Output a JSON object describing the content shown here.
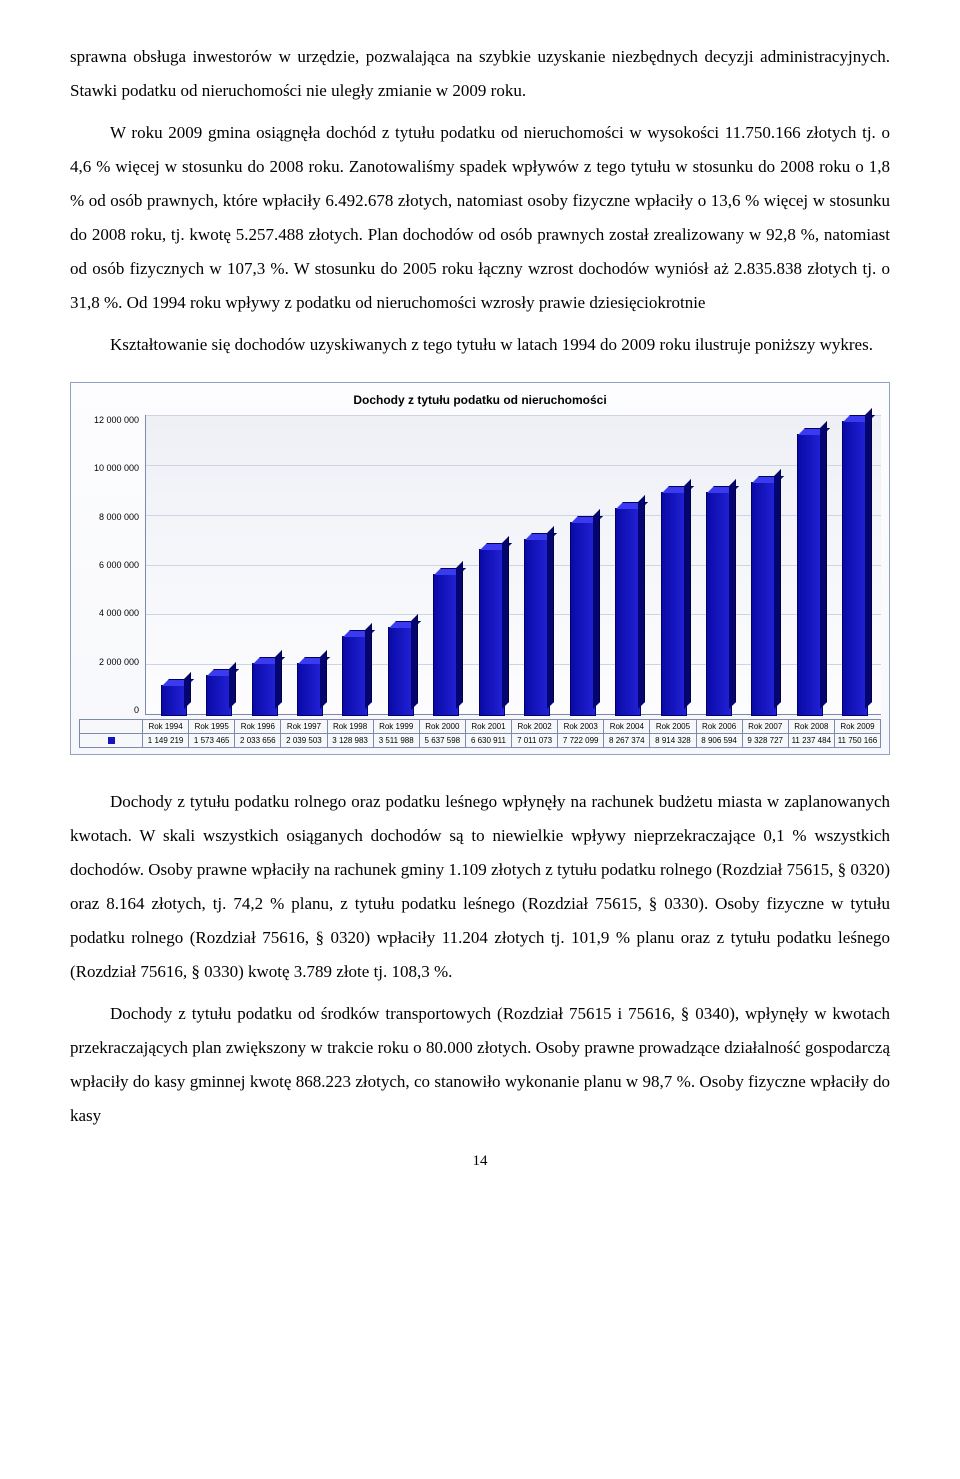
{
  "paragraphs": {
    "p1": "sprawna obsługa inwestorów w urzędzie, pozwalająca na szybkie uzyskanie niezbędnych decyzji administracyjnych. Stawki podatku od nieruchomości nie uległy zmianie w 2009 roku.",
    "p2": "W roku 2009 gmina osiągnęła dochód z tytułu podatku od nieruchomości w wysokości 11.750.166 złotych tj. o 4,6 % więcej w stosunku do 2008 roku. Zanotowaliśmy spadek wpływów z tego tytułu w stosunku do 2008 roku o 1,8 % od osób prawnych, które wpłaciły 6.492.678 złotych, natomiast osoby fizyczne wpłaciły o 13,6 % więcej w stosunku do 2008 roku, tj. kwotę 5.257.488 złotych. Plan dochodów od osób prawnych został zrealizowany w 92,8 %, natomiast od osób fizycznych w 107,3 %. W stosunku do 2005 roku łączny wzrost dochodów wyniósł aż 2.835.838 złotych tj. o 31,8 %. Od 1994 roku wpływy z podatku od nieruchomości wzrosły prawie dziesięciokrotnie",
    "p3": "Kształtowanie się dochodów uzyskiwanych z tego tytułu w latach 1994 do 2009 roku ilustruje poniższy wykres.",
    "p4": "Dochody z tytułu podatku rolnego oraz podatku leśnego wpłynęły na rachunek budżetu miasta w zaplanowanych kwotach. W skali wszystkich osiąganych dochodów są to niewielkie wpływy nieprzekraczające 0,1 % wszystkich dochodów. Osoby prawne wpłaciły na rachunek gminy 1.109 złotych z tytułu podatku rolnego (Rozdział 75615, § 0320) oraz 8.164 złotych, tj. 74,2 % planu, z tytułu podatku leśnego (Rozdział 75615, § 0330). Osoby fizyczne w tytułu podatku rolnego (Rozdział 75616, § 0320) wpłaciły 11.204 złotych tj. 101,9 % planu oraz z tytułu podatku leśnego (Rozdział 75616, § 0330) kwotę 3.789 złote tj. 108,3 %.",
    "p5": "Dochody z tytułu podatku od środków transportowych (Rozdział 75615 i 75616, § 0340), wpłynęły w kwotach przekraczających plan zwiększony w trakcie roku o 80.000 złotych. Osoby prawne prowadzące działalność gospodarczą wpłaciły do kasy gminnej kwotę 868.223 złotych, co stanowiło wykonanie planu w 98,7 %. Osoby fizyczne wpłaciły do kasy"
  },
  "chart": {
    "title": "Dochody z tytułu podatku od nieruchomości",
    "ymax": 12000000,
    "ystep": 2000000,
    "yticks": [
      "12 000 000",
      "10 000 000",
      "8 000 000",
      "6 000 000",
      "4 000 000",
      "2 000 000",
      "0"
    ],
    "categories": [
      "Rok 1994",
      "Rok 1995",
      "Rok 1996",
      "Rok 1997",
      "Rok 1998",
      "Rok 1999",
      "Rok 2000",
      "Rok 2001",
      "Rok 2002",
      "Rok 2003",
      "Rok 2004",
      "Rok 2005",
      "Rok 2006",
      "Rok 2007",
      "Rok 2008",
      "Rok 2009"
    ],
    "values": [
      1149219,
      1573465,
      2033656,
      2039503,
      3128983,
      3511988,
      5637598,
      6630911,
      7011073,
      7722099,
      8267374,
      8914328,
      8906594,
      9328727,
      11237484,
      11750166
    ],
    "value_labels": [
      "1 149 219",
      "1 573 465",
      "2 033 656",
      "2 039 503",
      "3 128 983",
      "3 511 988",
      "5 637 598",
      "6 630 911",
      "7 011 073",
      "7 722 099",
      "8 267 374",
      "8 914 328",
      "8 906 594",
      "9 328 727",
      "11 237 484",
      "11 750 166"
    ],
    "bar_color_front": "#1515c0",
    "bar_color_side": "#050570",
    "bar_color_top": "#3a3af0",
    "grid_color": "#cfd4e2",
    "border_color": "#7e8aab",
    "background_start": "#eef0f6",
    "background_end": "#fdfdff"
  },
  "page_number": "14"
}
